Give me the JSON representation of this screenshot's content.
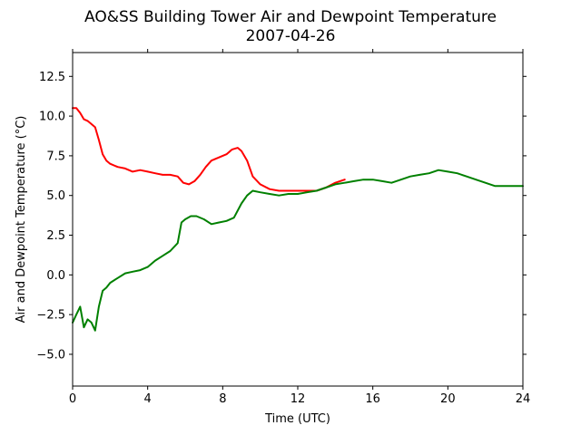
{
  "chart_data": {
    "type": "line",
    "title": "AO&SS Building Tower Air and Dewpoint Temperature",
    "subtitle": "2007-04-26",
    "xlabel": "Time (UTC)",
    "ylabel": "Air and Dewpoint Temperature (°C)",
    "xlim": [
      0,
      24
    ],
    "ylim": [
      -7,
      14
    ],
    "xticks": [
      0,
      4,
      8,
      12,
      16,
      20,
      24
    ],
    "xtick_labels": [
      "0",
      "4",
      "8",
      "12",
      "16",
      "20",
      "24"
    ],
    "yticks": [
      -5.0,
      -2.5,
      0.0,
      2.5,
      5.0,
      7.5,
      10.0,
      12.5
    ],
    "ytick_labels": [
      "−5.0",
      "−2.5",
      "0.0",
      "2.5",
      "5.0",
      "7.5",
      "10.0",
      "12.5"
    ],
    "grid": false,
    "series": [
      {
        "color": "#ff0000",
        "x": [
          0,
          0.2,
          0.4,
          0.6,
          0.8,
          1.0,
          1.2,
          1.4,
          1.6,
          1.8,
          2.0,
          2.4,
          2.8,
          3.2,
          3.6,
          4.0,
          4.4,
          4.8,
          5.2,
          5.6,
          5.9,
          6.2,
          6.5,
          6.8,
          7.1,
          7.4,
          7.8,
          8.2,
          8.5,
          8.8,
          9.0,
          9.3,
          9.6,
          10.0,
          10.5,
          11.0,
          11.5,
          12.0,
          12.5,
          13.0,
          13.5,
          14.0,
          14.5
        ],
        "y": [
          10.5,
          10.5,
          10.2,
          9.8,
          9.7,
          9.5,
          9.3,
          8.5,
          7.6,
          7.2,
          7.0,
          6.8,
          6.7,
          6.5,
          6.6,
          6.5,
          6.4,
          6.3,
          6.3,
          6.2,
          5.8,
          5.7,
          5.9,
          6.3,
          6.8,
          7.2,
          7.4,
          7.6,
          7.9,
          8.0,
          7.8,
          7.2,
          6.2,
          5.7,
          5.4,
          5.3,
          5.3,
          5.3,
          5.3,
          5.3,
          5.5,
          5.8,
          6.0
        ]
      },
      {
        "color": "#008000",
        "x": [
          0,
          0.2,
          0.4,
          0.6,
          0.8,
          1.0,
          1.2,
          1.4,
          1.6,
          1.8,
          2.0,
          2.4,
          2.8,
          3.2,
          3.6,
          4.0,
          4.4,
          4.8,
          5.2,
          5.6,
          5.8,
          6.0,
          6.3,
          6.6,
          7.0,
          7.4,
          7.8,
          8.2,
          8.6,
          9.0,
          9.3,
          9.6,
          10.0,
          10.5,
          11.0,
          11.5,
          12.0,
          12.5,
          13.0,
          13.5,
          14.0,
          14.5,
          15.0,
          15.5,
          16.0,
          16.5,
          17.0,
          17.5,
          18.0,
          18.5,
          19.0,
          19.5,
          20.0,
          20.5,
          21.0,
          21.5,
          22.0,
          22.5,
          23.0,
          23.5,
          24.0
        ],
        "y": [
          -3.0,
          -2.5,
          -2.0,
          -3.3,
          -2.8,
          -3.0,
          -3.5,
          -2.0,
          -1.0,
          -0.8,
          -0.5,
          -0.2,
          0.1,
          0.2,
          0.3,
          0.5,
          0.9,
          1.2,
          1.5,
          2.0,
          3.3,
          3.5,
          3.7,
          3.7,
          3.5,
          3.2,
          3.3,
          3.4,
          3.6,
          4.5,
          5.0,
          5.3,
          5.2,
          5.1,
          5.0,
          5.1,
          5.1,
          5.2,
          5.3,
          5.5,
          5.7,
          5.8,
          5.9,
          6.0,
          6.0,
          5.9,
          5.8,
          6.0,
          6.2,
          6.3,
          6.4,
          6.6,
          6.5,
          6.4,
          6.2,
          6.0,
          5.8,
          5.6,
          5.6,
          5.6,
          5.6
        ]
      }
    ]
  }
}
